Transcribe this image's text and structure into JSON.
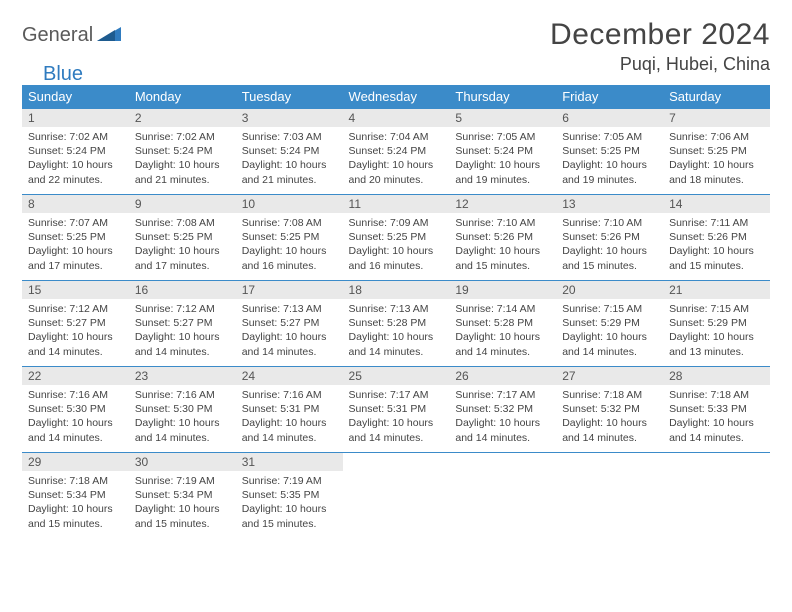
{
  "brand": {
    "part1": "General",
    "part2": "Blue"
  },
  "title": "December 2024",
  "location": "Puqi, Hubei, China",
  "colors": {
    "header_bg": "#3b8bc9",
    "header_text": "#ffffff",
    "daynum_bg": "#e9e9e9",
    "brand_gray": "#5a5a5a",
    "brand_blue": "#2f7bbf",
    "rule": "#3b8bc9"
  },
  "weekdays": [
    "Sunday",
    "Monday",
    "Tuesday",
    "Wednesday",
    "Thursday",
    "Friday",
    "Saturday"
  ],
  "weeks": [
    [
      {
        "n": "1",
        "sr": "7:02 AM",
        "ss": "5:24 PM",
        "dl": "10 hours and 22 minutes."
      },
      {
        "n": "2",
        "sr": "7:02 AM",
        "ss": "5:24 PM",
        "dl": "10 hours and 21 minutes."
      },
      {
        "n": "3",
        "sr": "7:03 AM",
        "ss": "5:24 PM",
        "dl": "10 hours and 21 minutes."
      },
      {
        "n": "4",
        "sr": "7:04 AM",
        "ss": "5:24 PM",
        "dl": "10 hours and 20 minutes."
      },
      {
        "n": "5",
        "sr": "7:05 AM",
        "ss": "5:24 PM",
        "dl": "10 hours and 19 minutes."
      },
      {
        "n": "6",
        "sr": "7:05 AM",
        "ss": "5:25 PM",
        "dl": "10 hours and 19 minutes."
      },
      {
        "n": "7",
        "sr": "7:06 AM",
        "ss": "5:25 PM",
        "dl": "10 hours and 18 minutes."
      }
    ],
    [
      {
        "n": "8",
        "sr": "7:07 AM",
        "ss": "5:25 PM",
        "dl": "10 hours and 17 minutes."
      },
      {
        "n": "9",
        "sr": "7:08 AM",
        "ss": "5:25 PM",
        "dl": "10 hours and 17 minutes."
      },
      {
        "n": "10",
        "sr": "7:08 AM",
        "ss": "5:25 PM",
        "dl": "10 hours and 16 minutes."
      },
      {
        "n": "11",
        "sr": "7:09 AM",
        "ss": "5:25 PM",
        "dl": "10 hours and 16 minutes."
      },
      {
        "n": "12",
        "sr": "7:10 AM",
        "ss": "5:26 PM",
        "dl": "10 hours and 15 minutes."
      },
      {
        "n": "13",
        "sr": "7:10 AM",
        "ss": "5:26 PM",
        "dl": "10 hours and 15 minutes."
      },
      {
        "n": "14",
        "sr": "7:11 AM",
        "ss": "5:26 PM",
        "dl": "10 hours and 15 minutes."
      }
    ],
    [
      {
        "n": "15",
        "sr": "7:12 AM",
        "ss": "5:27 PM",
        "dl": "10 hours and 14 minutes."
      },
      {
        "n": "16",
        "sr": "7:12 AM",
        "ss": "5:27 PM",
        "dl": "10 hours and 14 minutes."
      },
      {
        "n": "17",
        "sr": "7:13 AM",
        "ss": "5:27 PM",
        "dl": "10 hours and 14 minutes."
      },
      {
        "n": "18",
        "sr": "7:13 AM",
        "ss": "5:28 PM",
        "dl": "10 hours and 14 minutes."
      },
      {
        "n": "19",
        "sr": "7:14 AM",
        "ss": "5:28 PM",
        "dl": "10 hours and 14 minutes."
      },
      {
        "n": "20",
        "sr": "7:15 AM",
        "ss": "5:29 PM",
        "dl": "10 hours and 14 minutes."
      },
      {
        "n": "21",
        "sr": "7:15 AM",
        "ss": "5:29 PM",
        "dl": "10 hours and 13 minutes."
      }
    ],
    [
      {
        "n": "22",
        "sr": "7:16 AM",
        "ss": "5:30 PM",
        "dl": "10 hours and 14 minutes."
      },
      {
        "n": "23",
        "sr": "7:16 AM",
        "ss": "5:30 PM",
        "dl": "10 hours and 14 minutes."
      },
      {
        "n": "24",
        "sr": "7:16 AM",
        "ss": "5:31 PM",
        "dl": "10 hours and 14 minutes."
      },
      {
        "n": "25",
        "sr": "7:17 AM",
        "ss": "5:31 PM",
        "dl": "10 hours and 14 minutes."
      },
      {
        "n": "26",
        "sr": "7:17 AM",
        "ss": "5:32 PM",
        "dl": "10 hours and 14 minutes."
      },
      {
        "n": "27",
        "sr": "7:18 AM",
        "ss": "5:32 PM",
        "dl": "10 hours and 14 minutes."
      },
      {
        "n": "28",
        "sr": "7:18 AM",
        "ss": "5:33 PM",
        "dl": "10 hours and 14 minutes."
      }
    ],
    [
      {
        "n": "29",
        "sr": "7:18 AM",
        "ss": "5:34 PM",
        "dl": "10 hours and 15 minutes."
      },
      {
        "n": "30",
        "sr": "7:19 AM",
        "ss": "5:34 PM",
        "dl": "10 hours and 15 minutes."
      },
      {
        "n": "31",
        "sr": "7:19 AM",
        "ss": "5:35 PM",
        "dl": "10 hours and 15 minutes."
      },
      null,
      null,
      null,
      null
    ]
  ],
  "labels": {
    "sunrise": "Sunrise:",
    "sunset": "Sunset:",
    "daylight": "Daylight:"
  }
}
